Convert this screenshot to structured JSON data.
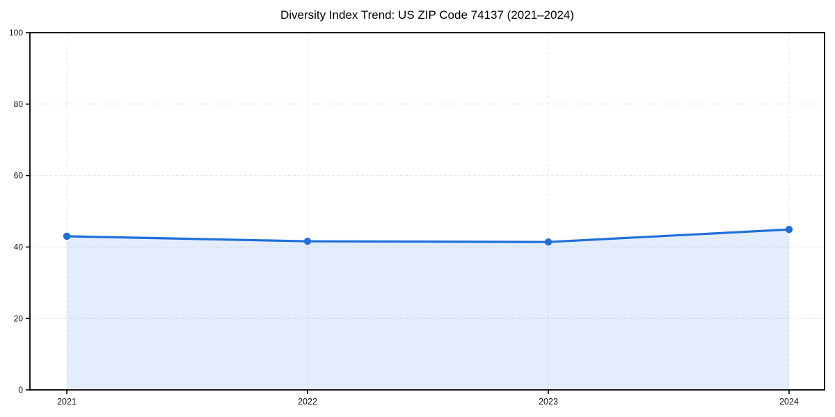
{
  "figure": {
    "background": "#ffffff"
  },
  "chart_data": {
    "type": "area",
    "title": "Diversity Index Trend: US ZIP Code 74137 (2021–2024)",
    "x_categories": [
      "2021",
      "2022",
      "2023",
      "2024"
    ],
    "series": [
      {
        "name": "Diversity Index",
        "values": [
          43.0,
          41.6,
          41.4,
          44.9
        ]
      }
    ],
    "xlabel": "",
    "ylabel": "",
    "ylim": [
      0,
      100
    ],
    "yticks": [
      0,
      20,
      40,
      60,
      80,
      100
    ],
    "grid": true,
    "grid_style": "dashed",
    "legend_position": "none",
    "marker": "circle",
    "colors": {
      "line": "#1f6fdb",
      "marker": "#1f6fdb",
      "fill": "rgba(31, 111, 219, 0.12)",
      "gridline": "#e4e4e4",
      "spine": "#000000",
      "tick_label": "#111111",
      "title": "#000000"
    }
  }
}
